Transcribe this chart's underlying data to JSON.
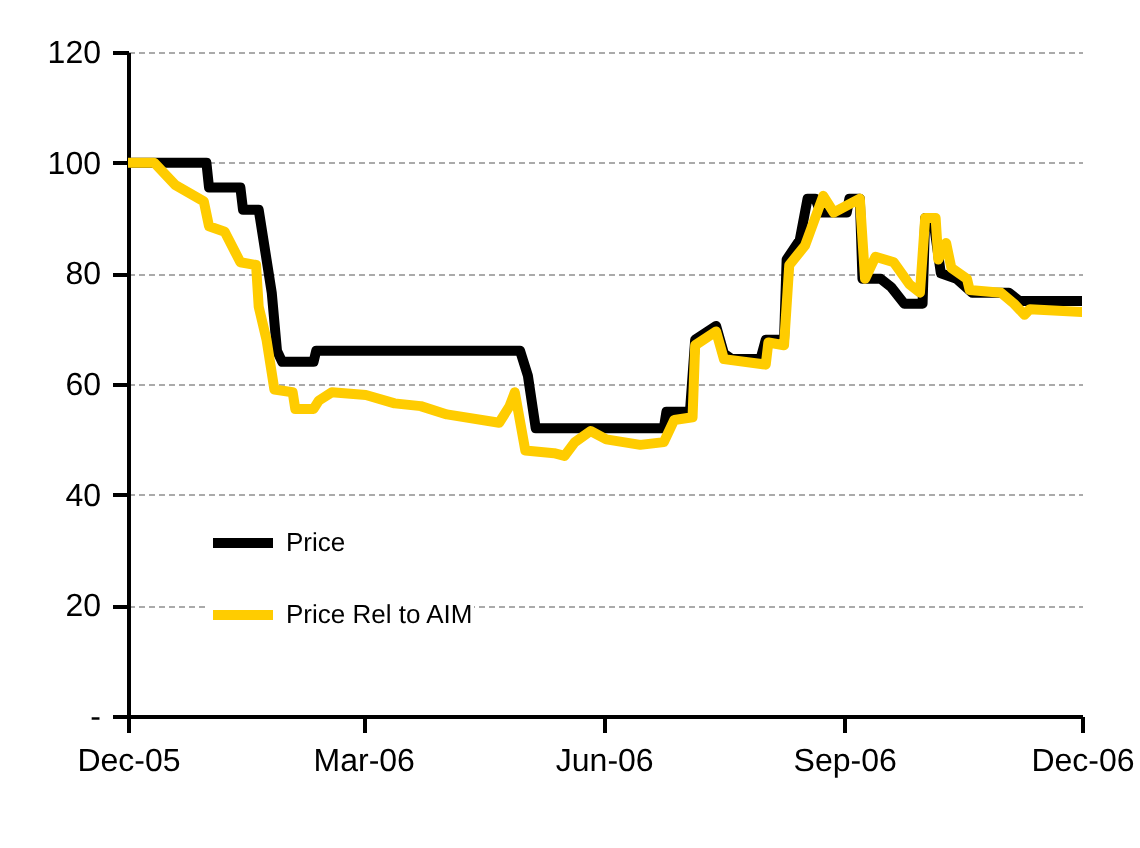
{
  "chart_data": {
    "type": "line",
    "xlim": [
      "2005-12-01",
      "2006-12-01"
    ],
    "xticks": [
      {
        "value": "2005-12-01",
        "label": "Dec-05"
      },
      {
        "value": "2006-03-01",
        "label": "Mar-06"
      },
      {
        "value": "2006-06-01",
        "label": "Jun-06"
      },
      {
        "value": "2006-09-01",
        "label": "Sep-06"
      },
      {
        "value": "2006-12-01",
        "label": "Dec-06"
      }
    ],
    "ylim": [
      0,
      120
    ],
    "yticks": [
      {
        "value": 0,
        "label": "-"
      },
      20,
      40,
      60,
      80,
      100,
      120
    ],
    "grid": "y",
    "legend": "bottom left",
    "line_style": "solid",
    "series": [
      {
        "name": "Price",
        "color": "#000000",
        "x": [
          "2005-12-01",
          "2005-12-31",
          "2006-01-01",
          "2006-01-13",
          "2006-01-14",
          "2006-01-20",
          "2006-01-23",
          "2006-01-25",
          "2006-01-27",
          "2006-01-29",
          "2006-02-10",
          "2006-02-11",
          "2006-04-30",
          "2006-05-03",
          "2006-05-06",
          "2006-06-24",
          "2006-06-25",
          "2006-07-04",
          "2006-07-06",
          "2006-07-14",
          "2006-07-17",
          "2006-07-20",
          "2006-07-31",
          "2006-08-02",
          "2006-08-09",
          "2006-08-10",
          "2006-08-15",
          "2006-08-18",
          "2006-08-21",
          "2006-08-23",
          "2006-09-02",
          "2006-09-03",
          "2006-09-07",
          "2006-09-08",
          "2006-09-15",
          "2006-09-19",
          "2006-09-24",
          "2006-10-01",
          "2006-10-02",
          "2006-10-05",
          "2006-10-08",
          "2006-10-14",
          "2006-10-20",
          "2006-11-03",
          "2006-11-07",
          "2006-12-01"
        ],
        "values": [
          100,
          100,
          95.5,
          95.5,
          91.5,
          91.5,
          82.5,
          76.5,
          66,
          64,
          64,
          66,
          66,
          61.5,
          52,
          52,
          55,
          55,
          68,
          70.5,
          65.5,
          64.5,
          64.5,
          68,
          68,
          82.5,
          86,
          93.5,
          93.5,
          91,
          91,
          93.5,
          93.5,
          79,
          79,
          77.5,
          74.5,
          74.5,
          90,
          90,
          80,
          79,
          76.5,
          76.5,
          75,
          75
        ]
      },
      {
        "name": "Price Rel to AIM",
        "color": "#ffcc00",
        "x": [
          "2005-12-01",
          "2005-12-11",
          "2005-12-19",
          "2005-12-30",
          "2006-01-01",
          "2006-01-07",
          "2006-01-13",
          "2006-01-19",
          "2006-01-20",
          "2006-01-23",
          "2006-01-26",
          "2006-02-02",
          "2006-02-03",
          "2006-02-10",
          "2006-02-12",
          "2006-02-17",
          "2006-03-02",
          "2006-03-13",
          "2006-03-23",
          "2006-04-02",
          "2006-04-22",
          "2006-04-26",
          "2006-04-28",
          "2006-05-02",
          "2006-05-13",
          "2006-05-17",
          "2006-05-21",
          "2006-05-27",
          "2006-06-02",
          "2006-06-15",
          "2006-06-24",
          "2006-06-28",
          "2006-07-05",
          "2006-07-06",
          "2006-07-14",
          "2006-07-17",
          "2006-08-02",
          "2006-08-03",
          "2006-08-09",
          "2006-08-11",
          "2006-08-17",
          "2006-08-24",
          "2006-08-28",
          "2006-09-07",
          "2006-09-09",
          "2006-09-13",
          "2006-09-20",
          "2006-09-26",
          "2006-09-30",
          "2006-10-02",
          "2006-10-06",
          "2006-10-07",
          "2006-10-10",
          "2006-10-12",
          "2006-10-18",
          "2006-10-19",
          "2006-10-31",
          "2006-11-05",
          "2006-11-09",
          "2006-11-11",
          "2006-12-01"
        ],
        "values": [
          100,
          100,
          96,
          93,
          88.5,
          87.5,
          82,
          81.5,
          74,
          68,
          59,
          58.5,
          55.5,
          55.5,
          57,
          58.5,
          58,
          56.5,
          56,
          54.5,
          53,
          56,
          58.5,
          48,
          47.5,
          47,
          49.5,
          51.5,
          50,
          49,
          49.5,
          53.5,
          54,
          67,
          69.5,
          64.5,
          63.5,
          67.5,
          67,
          81.5,
          85,
          94,
          91,
          93.5,
          79,
          83,
          82,
          78,
          76.5,
          90,
          90,
          82.5,
          85.5,
          81,
          79,
          77,
          76.5,
          74.5,
          72.5,
          73.5,
          73
        ]
      }
    ]
  }
}
